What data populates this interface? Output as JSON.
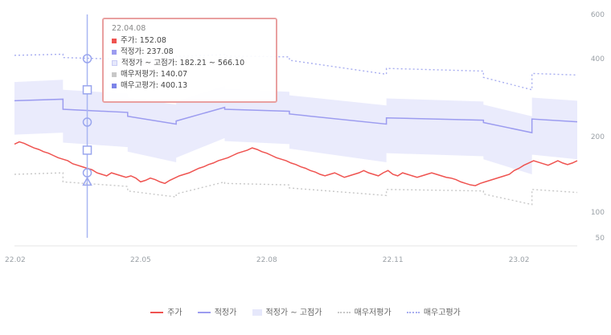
{
  "chart_data": {
    "type": "line",
    "x_ticks": [
      "22.02",
      "22.05",
      "22.08",
      "22.11",
      "23.02"
    ],
    "y_ticks": [
      50,
      100,
      200,
      400,
      600
    ],
    "ylim": [
      50,
      600
    ],
    "series": [
      {
        "name": "주가",
        "color": "#ef5350",
        "style": "solid",
        "x": [
          0,
          3,
          6,
          9,
          12,
          15,
          18,
          21,
          24,
          27,
          30,
          33,
          36,
          39,
          42,
          45,
          48,
          51,
          54,
          57,
          60,
          63,
          66,
          69,
          72,
          75,
          78,
          81,
          84,
          87,
          90,
          93,
          96,
          99,
          102,
          105,
          108,
          111,
          114,
          117,
          120,
          123,
          126,
          129,
          132,
          135,
          138,
          141,
          144,
          147,
          150,
          153,
          156,
          159,
          162,
          165,
          168,
          171,
          174,
          177,
          180,
          183,
          186,
          189,
          192,
          195,
          198,
          201,
          204,
          207,
          210,
          213,
          216,
          219,
          222,
          225,
          228,
          231,
          234,
          237,
          240,
          243,
          246,
          249,
          252,
          255,
          258,
          261,
          264,
          267,
          270,
          273,
          276,
          279,
          282,
          285,
          288,
          291,
          294,
          297,
          300,
          303,
          306,
          309,
          312,
          315,
          318,
          321,
          324,
          327,
          330,
          333,
          336,
          339,
          342,
          345,
          348
        ],
        "values": [
          190,
          193,
          191,
          188,
          185,
          183,
          180,
          178,
          175,
          172,
          170,
          168,
          164,
          162,
          160,
          158,
          156,
          152,
          150,
          148,
          152,
          150,
          148,
          146,
          148,
          145,
          140,
          142,
          145,
          143,
          140,
          138,
          142,
          145,
          148,
          150,
          152,
          155,
          158,
          160,
          163,
          165,
          168,
          170,
          172,
          175,
          178,
          180,
          182,
          185,
          183,
          180,
          178,
          175,
          172,
          170,
          168,
          165,
          163,
          160,
          158,
          155,
          153,
          150,
          148,
          150,
          152,
          149,
          146,
          148,
          150,
          152,
          155,
          152,
          150,
          148,
          152,
          155,
          150,
          148,
          152,
          150,
          148,
          146,
          148,
          150,
          152,
          150,
          148,
          146,
          145,
          143,
          140,
          138,
          136,
          135,
          138,
          140,
          142,
          144,
          146,
          148,
          150,
          155,
          158,
          162,
          165,
          168,
          166,
          164,
          162,
          165,
          168,
          165,
          163,
          165,
          168
        ]
      },
      {
        "name": "적정가",
        "color": "#9c9cf0",
        "style": "solid",
        "x": [
          0,
          30,
          30,
          70,
          70,
          100,
          100,
          130,
          130,
          170,
          170,
          230,
          230,
          290,
          290,
          320,
          320,
          348
        ],
        "values": [
          292,
          296,
          270,
          262,
          252,
          232,
          240,
          275,
          270,
          265,
          258,
          232,
          248,
          242,
          236,
          210,
          245,
          238
        ]
      },
      {
        "name": "적정가 ~ 고점가",
        "color": "#e6e8fb",
        "style": "band",
        "x": [
          0,
          30,
          30,
          70,
          70,
          100,
          100,
          130,
          130,
          170,
          170,
          230,
          230,
          290,
          290,
          320,
          320,
          348
        ],
        "upper": [
          340,
          346,
          320,
          310,
          300,
          282,
          290,
          330,
          322,
          315,
          306,
          280,
          298,
          290,
          282,
          252,
          300,
          292
        ],
        "lower": [
          205,
          210,
          192,
          186,
          180,
          166,
          172,
          198,
          194,
          190,
          184,
          166,
          178,
          174,
          170,
          150,
          176,
          170
        ]
      },
      {
        "name": "매우저평가",
        "color": "#c8c8c8",
        "style": "dotted",
        "x": [
          0,
          30,
          30,
          70,
          70,
          100,
          100,
          130,
          130,
          170,
          170,
          230,
          230,
          290,
          290,
          320,
          320,
          348
        ],
        "values": [
          150,
          152,
          140,
          134,
          128,
          120,
          124,
          140,
          138,
          136,
          132,
          122,
          130,
          128,
          124,
          110,
          130,
          126
        ]
      },
      {
        "name": "매우고평가",
        "color": "#a8aef0",
        "style": "dotted",
        "x": [
          0,
          30,
          30,
          70,
          70,
          100,
          100,
          130,
          130,
          170,
          170,
          230,
          230,
          290,
          290,
          320,
          320,
          348
        ],
        "values": [
          415,
          420,
          405,
          398,
          392,
          400,
          410,
          418,
          412,
          408,
          396,
          360,
          375,
          368,
          352,
          320,
          362,
          358
        ]
      }
    ],
    "crosshair_x": 45,
    "legend": [
      "주가",
      "적정가",
      "적정가 ~ 고점가",
      "매우저평가",
      "매우고평가"
    ],
    "legend_position": "bottom",
    "grid": false
  },
  "tooltip": {
    "date": "22.04.08",
    "rows": [
      {
        "label": "주가: 152.08",
        "color": "#ef5350"
      },
      {
        "label": "적정가: 237.08",
        "color": "#9c9cf0"
      },
      {
        "label": "적정가 ~ 고점가: 182.21 ~ 566.10",
        "color": "#e6e8fb"
      },
      {
        "label": "매우저평가: 140.07",
        "color": "#c8c8c8"
      },
      {
        "label": "매우고평가: 400.13",
        "color": "#7c84e8"
      }
    ]
  }
}
